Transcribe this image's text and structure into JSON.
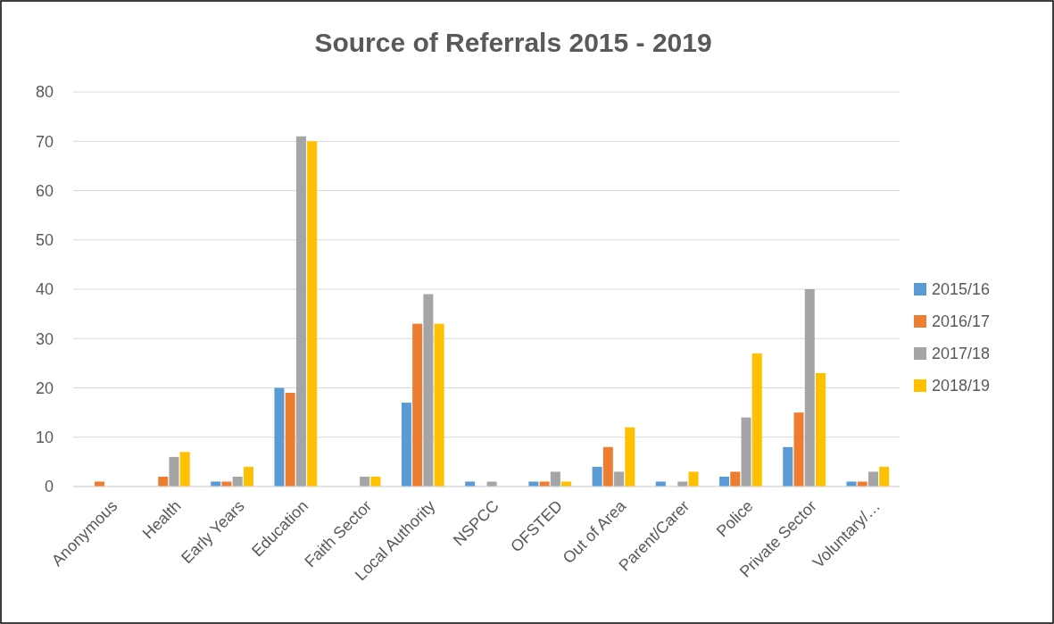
{
  "chart_data": {
    "type": "bar",
    "title": "Source of Referrals 2015 - 2019",
    "categories": [
      "Anonymous",
      "Health",
      "Early Years",
      "Education",
      "Faith Sector",
      "Local Authority",
      "NSPCC",
      "OFSTED",
      "Out of Area",
      "Parent/Carer",
      "Police",
      "Private Sector",
      "Voluntary/…"
    ],
    "series": [
      {
        "name": "2015/16",
        "color": "#5b9bd5",
        "values": [
          0,
          0,
          1,
          20,
          0,
          17,
          1,
          1,
          4,
          1,
          2,
          8,
          1
        ]
      },
      {
        "name": "2016/17",
        "color": "#ed7d31",
        "values": [
          1,
          2,
          1,
          19,
          0,
          33,
          0,
          1,
          8,
          0,
          3,
          15,
          1
        ]
      },
      {
        "name": "2017/18",
        "color": "#a5a5a5",
        "values": [
          0,
          6,
          2,
          71,
          2,
          39,
          1,
          3,
          3,
          1,
          14,
          40,
          3
        ]
      },
      {
        "name": "2018/19",
        "color": "#ffc000",
        "values": [
          0,
          7,
          4,
          70,
          2,
          33,
          0,
          1,
          12,
          3,
          27,
          23,
          4
        ]
      }
    ],
    "ylim": [
      0,
      80
    ],
    "yticks": [
      0,
      10,
      20,
      30,
      40,
      50,
      60,
      70,
      80
    ],
    "grid": "y",
    "legend": "right"
  }
}
